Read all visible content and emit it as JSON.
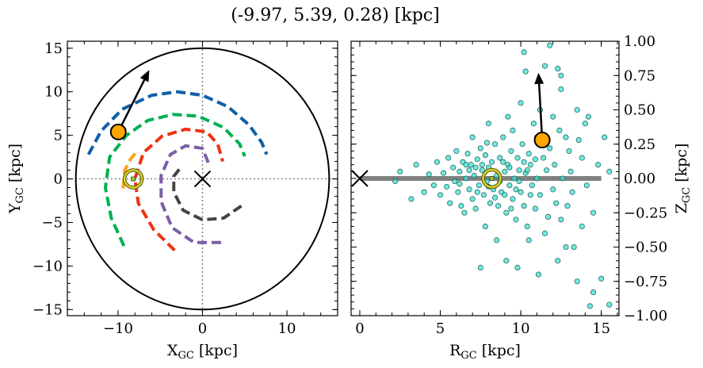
{
  "title": "(-9.97, 5.39, 0.28) [kpc]",
  "chart_data": [
    {
      "type": "line",
      "panel": "left",
      "xlabel": "X",
      "xlabel_sub": "GC",
      "xlabel_unit": " [kpc]",
      "ylabel": "Y",
      "ylabel_sub": "GC",
      "ylabel_unit": " [kpc]",
      "xlim": [
        -16,
        16
      ],
      "ylim": [
        -15.7,
        15.8
      ],
      "xticks": [
        -10,
        0,
        10
      ],
      "yticks": [
        -15,
        -10,
        -5,
        0,
        5,
        10,
        15
      ],
      "grid": false,
      "boundary_circle_radius": 15,
      "reference_lines": {
        "x": 0,
        "y": 0,
        "style": "dotted",
        "color": "#808080"
      },
      "arms": [
        {
          "color": "#0f5fa8",
          "points": [
            [
              -13.5,
              2.8
            ],
            [
              -12,
              5.5
            ],
            [
              -9.5,
              8
            ],
            [
              -6,
              9.6
            ],
            [
              -3,
              10
            ],
            [
              0,
              9.6
            ],
            [
              3,
              8.3
            ],
            [
              5.5,
              6.2
            ],
            [
              7,
              4.2
            ],
            [
              7.6,
              2.8
            ]
          ]
        },
        {
          "color": "#00b050",
          "points": [
            [
              -9.3,
              -7.7
            ],
            [
              -10.8,
              -4.5
            ],
            [
              -11.5,
              -1
            ],
            [
              -11,
              2.5
            ],
            [
              -9,
              5
            ],
            [
              -6.5,
              6.7
            ],
            [
              -3.5,
              7.4
            ],
            [
              -0.5,
              7.2
            ],
            [
              2.5,
              5.9
            ],
            [
              4.4,
              4
            ],
            [
              5,
              2.6
            ]
          ]
        },
        {
          "color": "#ff9f1a",
          "points": [
            [
              -9.4,
              -1.1
            ],
            [
              -9.2,
              1
            ],
            [
              -8.5,
              2.3
            ],
            [
              -7.8,
              3.1
            ]
          ]
        },
        {
          "color": "#ee3311",
          "points": [
            [
              -3.3,
              -8.2
            ],
            [
              -5.8,
              -5.8
            ],
            [
              -7.6,
              -2.8
            ],
            [
              -8,
              0
            ],
            [
              -7,
              3
            ],
            [
              -4.8,
              4.9
            ],
            [
              -2,
              5.7
            ],
            [
              0.5,
              5.4
            ],
            [
              1.8,
              4
            ],
            [
              2.4,
              2
            ]
          ]
        },
        {
          "color": "#7b5ea7",
          "points": [
            [
              2.2,
              -7.3
            ],
            [
              -1,
              -7.3
            ],
            [
              -3.6,
              -5.6
            ],
            [
              -4.9,
              -2.6
            ],
            [
              -4.9,
              0.4
            ],
            [
              -3.8,
              2.8
            ],
            [
              -2,
              3.8
            ],
            [
              0,
              3.5
            ],
            [
              0.8,
              1.6
            ]
          ]
        },
        {
          "color": "#444444",
          "points": [
            [
              4.6,
              -3.1
            ],
            [
              2.5,
              -4.5
            ],
            [
              0,
              -4.7
            ],
            [
              -2.3,
              -3.6
            ],
            [
              -3.4,
              -1.5
            ],
            [
              -3.4,
              0.3
            ],
            [
              -2.5,
              1.4
            ]
          ]
        }
      ],
      "galactic_center_marker": [
        0,
        0
      ],
      "sun": [
        -8.2,
        0
      ],
      "object": {
        "position": [
          -9.97,
          5.39
        ],
        "arrow_to": [
          -6.3,
          12.5
        ],
        "color": "#ffa500"
      }
    },
    {
      "type": "scatter",
      "panel": "right",
      "xlabel": "R",
      "xlabel_sub": "GC",
      "xlabel_unit": " [kpc]",
      "ylabel": "Z",
      "ylabel_sub": "GC",
      "ylabel_unit": " [kpc]",
      "ylabel_side": "right",
      "xlim": [
        -0.54,
        16.1
      ],
      "ylim": [
        -1.0,
        1.0
      ],
      "xticks": [
        0,
        5,
        10,
        15
      ],
      "yticks": [
        -1.0,
        -0.75,
        -0.5,
        -0.25,
        0.0,
        0.25,
        0.5,
        0.75,
        1.0
      ],
      "ytick_labels": [
        "−1.00",
        "−0.75",
        "−0.50",
        "−0.25",
        "0.00",
        "0.25",
        "0.50",
        "0.75",
        "1.00"
      ],
      "grid": false,
      "point_color": "#40e0d0",
      "disk_line": {
        "from": 0,
        "to": 15,
        "z": 0,
        "color": "#808080"
      },
      "galactic_center_marker": [
        0,
        0
      ],
      "sun": [
        8.2,
        0
      ],
      "object": {
        "position": [
          11.33,
          0.28
        ],
        "arrow_to": [
          11.1,
          0.77
        ],
        "color": "#ffa500"
      },
      "points": [
        [
          2.2,
          -0.02
        ],
        [
          2.5,
          0.05
        ],
        [
          3.2,
          -0.15
        ],
        [
          3.5,
          0.1
        ],
        [
          4.0,
          -0.1
        ],
        [
          4.3,
          0.03
        ],
        [
          4.6,
          -0.05
        ],
        [
          4.8,
          0.12
        ],
        [
          5.0,
          -0.12
        ],
        [
          5.2,
          0.04
        ],
        [
          5.4,
          -0.06
        ],
        [
          5.5,
          0.15
        ],
        [
          5.6,
          -0.18
        ],
        [
          5.8,
          0.08
        ],
        [
          5.9,
          -0.02
        ],
        [
          6.0,
          0.2
        ],
        [
          6.1,
          -0.1
        ],
        [
          6.2,
          0.05
        ],
        [
          6.3,
          -0.2
        ],
        [
          6.4,
          0.12
        ],
        [
          6.5,
          -0.25
        ],
        [
          6.6,
          0.0
        ],
        [
          6.7,
          0.18
        ],
        [
          6.8,
          -0.08
        ],
        [
          6.9,
          0.1
        ],
        [
          7.0,
          0.3
        ],
        [
          7.0,
          -0.15
        ],
        [
          7.1,
          0.02
        ],
        [
          7.2,
          -0.22
        ],
        [
          7.3,
          0.14
        ],
        [
          7.4,
          -0.05
        ],
        [
          7.5,
          0.22
        ],
        [
          7.5,
          -0.65
        ],
        [
          7.6,
          0.06
        ],
        [
          7.7,
          -0.12
        ],
        [
          7.8,
          -0.35
        ],
        [
          7.8,
          0.17
        ],
        [
          7.9,
          -0.02
        ],
        [
          8.0,
          0.4
        ],
        [
          8.0,
          0.08
        ],
        [
          8.1,
          -0.18
        ],
        [
          8.2,
          0.12
        ],
        [
          8.3,
          -0.08
        ],
        [
          8.4,
          0.25
        ],
        [
          8.5,
          -0.45
        ],
        [
          8.5,
          0.02
        ],
        [
          8.6,
          -0.2
        ],
        [
          8.7,
          0.15
        ],
        [
          8.8,
          -0.1
        ],
        [
          8.9,
          0.3
        ],
        [
          9.0,
          0.05
        ],
        [
          9.1,
          -0.6
        ],
        [
          9.1,
          -0.25
        ],
        [
          9.2,
          0.45
        ],
        [
          9.2,
          0.1
        ],
        [
          9.3,
          -0.05
        ],
        [
          9.4,
          0.2
        ],
        [
          9.5,
          0.35
        ],
        [
          9.5,
          -0.15
        ],
        [
          9.6,
          0.0
        ],
        [
          9.7,
          -0.3
        ],
        [
          9.8,
          -0.65
        ],
        [
          9.8,
          0.15
        ],
        [
          9.9,
          0.06
        ],
        [
          10.0,
          0.55
        ],
        [
          10.0,
          -0.1
        ],
        [
          10.1,
          0.25
        ],
        [
          10.2,
          0.92
        ],
        [
          10.2,
          -0.2
        ],
        [
          10.3,
          0.78
        ],
        [
          10.3,
          0.04
        ],
        [
          10.4,
          -0.35
        ],
        [
          10.5,
          -0.45
        ],
        [
          10.5,
          0.18
        ],
        [
          10.6,
          0.1
        ],
        [
          10.7,
          -0.05
        ],
        [
          10.8,
          0.4
        ],
        [
          10.9,
          -0.22
        ],
        [
          11.0,
          0.3
        ],
        [
          11.0,
          0.0
        ],
        [
          11.1,
          -0.7
        ],
        [
          11.2,
          0.5
        ],
        [
          11.2,
          -0.12
        ],
        [
          11.4,
          0.15
        ],
        [
          11.5,
          0.82
        ],
        [
          11.5,
          -0.4
        ],
        [
          11.6,
          0.06
        ],
        [
          11.7,
          -0.28
        ],
        [
          11.8,
          0.97
        ],
        [
          11.8,
          0.22
        ],
        [
          12.0,
          0.45
        ],
        [
          12.0,
          -0.08
        ],
        [
          12.1,
          0.1
        ],
        [
          12.2,
          -0.18
        ],
        [
          12.3,
          0.8
        ],
        [
          12.3,
          -0.6
        ],
        [
          12.4,
          0.35
        ],
        [
          12.5,
          0.65
        ],
        [
          12.5,
          0.75
        ],
        [
          12.5,
          -0.3
        ],
        [
          12.6,
          0.0
        ],
        [
          12.8,
          0.3
        ],
        [
          12.8,
          -0.5
        ],
        [
          12.9,
          -0.2
        ],
        [
          13.0,
          0.2
        ],
        [
          13.1,
          0.05
        ],
        [
          13.2,
          -0.1
        ],
        [
          13.3,
          -0.5
        ],
        [
          13.5,
          0.5
        ],
        [
          13.5,
          -0.75
        ],
        [
          13.6,
          0.28
        ],
        [
          13.8,
          0.15
        ],
        [
          13.8,
          -0.35
        ],
        [
          14.0,
          0.4
        ],
        [
          14.1,
          -0.05
        ],
        [
          14.2,
          0.45
        ],
        [
          14.3,
          -0.93
        ],
        [
          14.5,
          -0.83
        ],
        [
          14.5,
          -0.25
        ],
        [
          14.8,
          0.1
        ],
        [
          15.0,
          -0.73
        ],
        [
          15.2,
          0.3
        ],
        [
          15.5,
          -0.92
        ],
        [
          15.5,
          0.05
        ],
        [
          6.2,
          -0.04
        ],
        [
          6.8,
          0.06
        ],
        [
          7.3,
          -0.1
        ],
        [
          7.6,
          0.1
        ],
        [
          8.4,
          -0.14
        ],
        [
          8.9,
          0.12
        ],
        [
          9.3,
          0.08
        ],
        [
          9.7,
          -0.08
        ],
        [
          10.2,
          0.12
        ],
        [
          10.6,
          -0.12
        ],
        [
          7.2,
          0.08
        ],
        [
          8.0,
          -0.06
        ],
        [
          8.7,
          -0.02
        ],
        [
          9.0,
          -0.12
        ],
        [
          9.9,
          -0.02
        ],
        [
          10.4,
          0.06
        ],
        [
          6.6,
          0.1
        ],
        [
          7.9,
          0.26
        ],
        [
          9.4,
          -0.22
        ],
        [
          10.9,
          0.14
        ]
      ]
    }
  ]
}
